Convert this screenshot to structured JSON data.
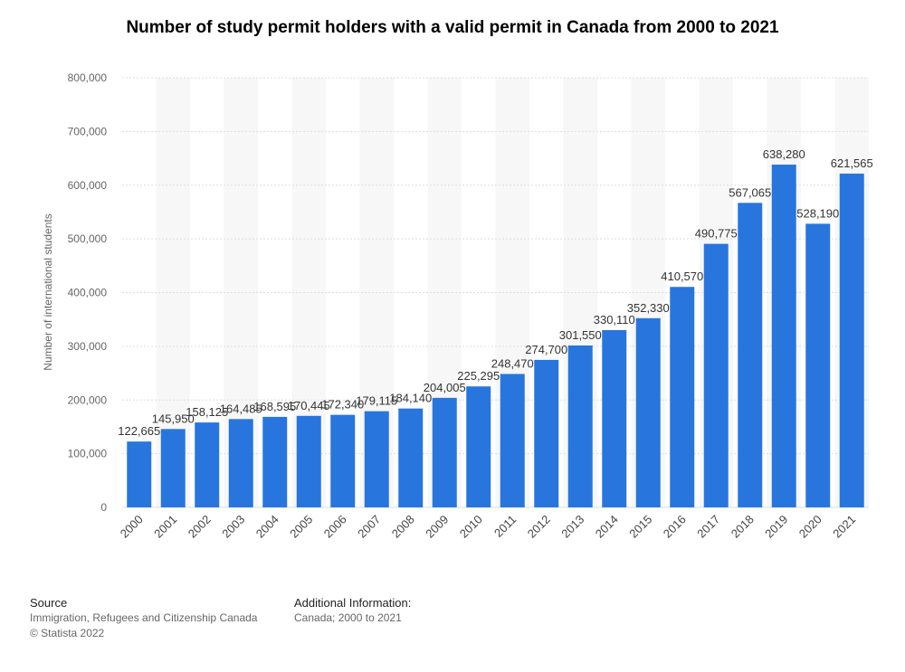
{
  "chart_data": {
    "type": "bar",
    "title": "Number of study permit holders with a valid permit in Canada from 2000 to 2021",
    "xlabel": "",
    "ylabel": "Number of international students",
    "ylim": [
      0,
      800000
    ],
    "yticks": [
      0,
      100000,
      200000,
      300000,
      400000,
      500000,
      600000,
      700000,
      800000
    ],
    "ytick_labels": [
      "0",
      "100,000",
      "200,000",
      "300,000",
      "400,000",
      "500,000",
      "600,000",
      "700,000",
      "800,000"
    ],
    "grid": true,
    "categories": [
      "2000",
      "2001",
      "2002",
      "2003",
      "2004",
      "2005",
      "2006",
      "2007",
      "2008",
      "2009",
      "2010",
      "2011",
      "2012",
      "2013",
      "2014",
      "2015",
      "2016",
      "2017",
      "2018",
      "2019",
      "2020",
      "2021"
    ],
    "values": [
      122665,
      145950,
      158125,
      164485,
      168595,
      170445,
      172340,
      179115,
      184140,
      204005,
      225295,
      248470,
      274700,
      301550,
      330110,
      352330,
      410570,
      490775,
      567065,
      638280,
      528190,
      621565
    ],
    "value_labels": [
      "122,665",
      "145,950",
      "158,125",
      "164,485",
      "168,595",
      "170,445",
      "172,340",
      "179,115",
      "184,140",
      "204,005",
      "225,295",
      "248,470",
      "274,700",
      "301,550",
      "330,110",
      "352,330",
      "410,570",
      "490,775",
      "567,065",
      "638,280",
      "528,190",
      "621,565"
    ],
    "bar_color": "#2876dd"
  },
  "footer": {
    "source_heading": "Source",
    "source_text": "Immigration, Refugees and Citizenship Canada",
    "copyright": "© Statista 2022",
    "additional_heading": "Additional Information:",
    "additional_text": "Canada; 2000 to 2021"
  }
}
